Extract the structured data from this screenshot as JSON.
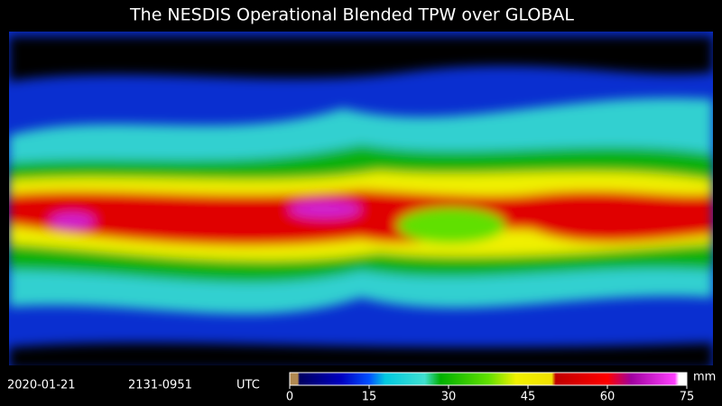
{
  "title": "The NESDIS Operational Blended TPW over GLOBAL",
  "date": "2020-01-21",
  "time_range": "2131-0951",
  "timezone": "UTC",
  "colorbar": {
    "lim": [
      0,
      75
    ],
    "ticks": [
      0,
      15,
      30,
      45,
      60,
      75
    ],
    "unit": "mm"
  }
}
